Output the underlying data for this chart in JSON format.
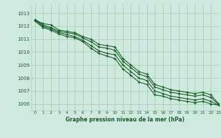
{
  "title": "Graphe pression niveau de la mer (hPa)",
  "background_color": "#ceeade",
  "grid_color": "#aecebe",
  "line_color": "#1a5c2a",
  "ylim": [
    1005.5,
    1013.7
  ],
  "xlim": [
    -0.5,
    23
  ],
  "yticks": [
    1006,
    1007,
    1008,
    1009,
    1010,
    1011,
    1012,
    1013
  ],
  "xticks": [
    0,
    1,
    2,
    3,
    4,
    5,
    6,
    7,
    8,
    9,
    10,
    11,
    12,
    13,
    14,
    15,
    16,
    17,
    18,
    19,
    20,
    21,
    22,
    23
  ],
  "series": [
    [
      1012.5,
      1012.2,
      1012.1,
      1011.7,
      1011.6,
      1011.5,
      1011.2,
      1011.0,
      1010.6,
      1010.5,
      1010.4,
      1009.5,
      1009.0,
      1008.5,
      1008.3,
      1007.5,
      1007.3,
      1007.1,
      1007.0,
      1006.9,
      1006.8,
      1006.9,
      1006.7,
      1006.0
    ],
    [
      1012.5,
      1012.1,
      1011.9,
      1011.6,
      1011.5,
      1011.4,
      1011.1,
      1010.8,
      1010.4,
      1010.3,
      1010.15,
      1009.3,
      1008.8,
      1008.3,
      1008.1,
      1007.3,
      1007.1,
      1006.9,
      1006.8,
      1006.7,
      1006.6,
      1006.7,
      1006.5,
      1005.95
    ],
    [
      1012.45,
      1012.0,
      1011.8,
      1011.5,
      1011.35,
      1011.2,
      1010.9,
      1010.5,
      1010.1,
      1009.9,
      1009.8,
      1009.0,
      1008.5,
      1008.0,
      1007.8,
      1007.0,
      1006.8,
      1006.6,
      1006.5,
      1006.4,
      1006.3,
      1006.4,
      1006.2,
      1005.9
    ],
    [
      1012.4,
      1011.9,
      1011.7,
      1011.4,
      1011.2,
      1011.1,
      1010.8,
      1010.3,
      1009.9,
      1009.7,
      1009.5,
      1008.7,
      1008.2,
      1007.7,
      1007.5,
      1006.7,
      1006.6,
      1006.4,
      1006.3,
      1006.2,
      1006.1,
      1006.2,
      1006.0,
      1005.9
    ]
  ]
}
